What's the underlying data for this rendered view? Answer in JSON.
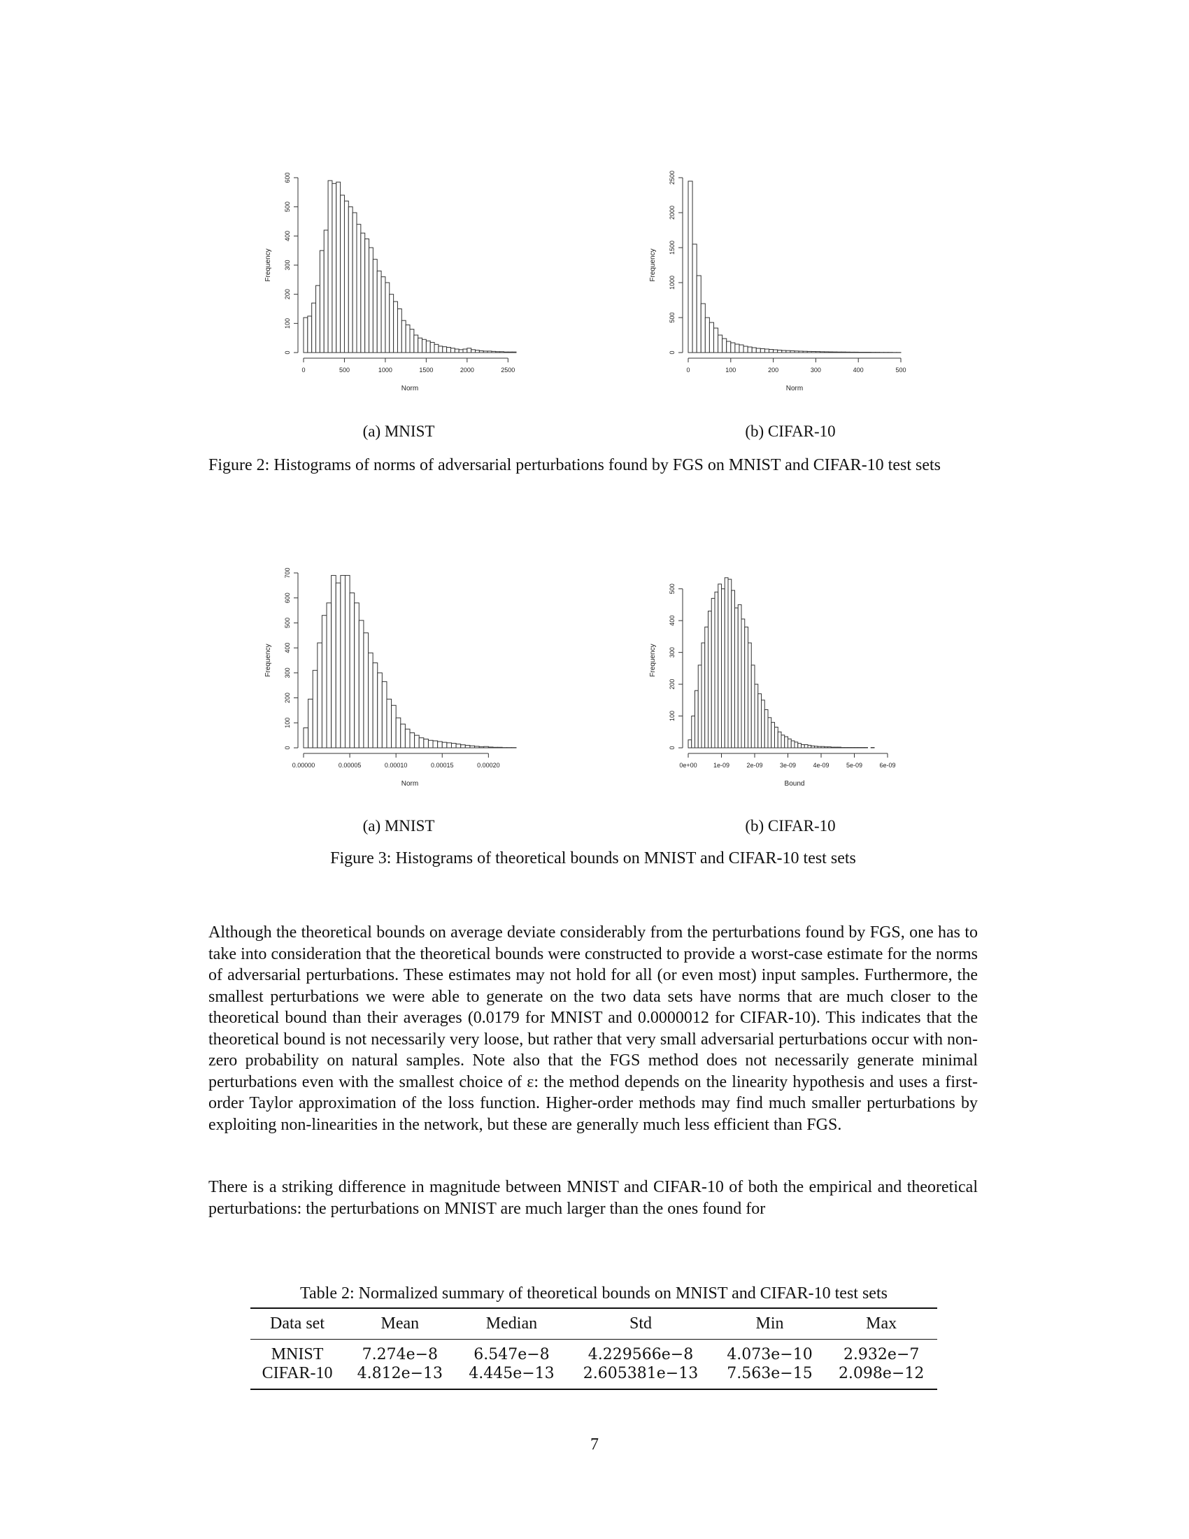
{
  "figure2": {
    "caption": "Figure 2: Histograms of norms of adversarial perturbations found by FGS on MNIST and CIFAR-10 test sets",
    "subcaptions": [
      "(a) MNIST",
      "(b) CIFAR-10"
    ]
  },
  "figure3": {
    "caption": "Figure 3: Histograms of theoretical bounds on MNIST and CIFAR-10 test sets",
    "subcaptions": [
      "(a) MNIST",
      "(b) CIFAR-10"
    ]
  },
  "chart_data": [
    {
      "id": "fig2a",
      "type": "bar",
      "title": "",
      "xlabel": "Norm",
      "ylabel": "Frequency",
      "xlim": [
        0,
        2600
      ],
      "ylim": [
        0,
        600
      ],
      "bin_width": 50,
      "x_start": 0,
      "xticks": [
        0,
        500,
        1000,
        1500,
        2000,
        2500
      ],
      "xtick_labels": [
        "0",
        "500",
        "1000",
        "1500",
        "2000",
        "2500"
      ],
      "yticks": [
        0,
        100,
        200,
        300,
        400,
        500,
        600
      ],
      "ytick_labels": [
        "0",
        "100",
        "200",
        "300",
        "400",
        "500",
        "600"
      ],
      "values": [
        120,
        125,
        170,
        230,
        350,
        420,
        590,
        580,
        585,
        540,
        520,
        500,
        480,
        440,
        410,
        390,
        360,
        320,
        280,
        260,
        240,
        200,
        175,
        150,
        110,
        95,
        80,
        60,
        50,
        45,
        40,
        35,
        28,
        22,
        20,
        18,
        15,
        12,
        10,
        12,
        15,
        10,
        8,
        6,
        5,
        5,
        4,
        3,
        3,
        2,
        2,
        2
      ]
    },
    {
      "id": "fig2b",
      "type": "bar",
      "title": "",
      "xlabel": "Norm",
      "ylabel": "Frequency",
      "xlim": [
        0,
        500
      ],
      "ylim": [
        0,
        2500
      ],
      "bin_width": 10,
      "x_start": 0,
      "xticks": [
        0,
        100,
        200,
        300,
        400,
        500
      ],
      "xtick_labels": [
        "0",
        "100",
        "200",
        "300",
        "400",
        "500"
      ],
      "yticks": [
        0,
        500,
        1000,
        1500,
        2000,
        2500
      ],
      "ytick_labels": [
        "0",
        "500",
        "1000",
        "1500",
        "2000",
        "2500"
      ],
      "values": [
        2450,
        1550,
        1100,
        700,
        500,
        430,
        350,
        250,
        200,
        160,
        140,
        120,
        110,
        90,
        80,
        70,
        60,
        55,
        50,
        45,
        40,
        35,
        30,
        28,
        25,
        22,
        20,
        18,
        16,
        15,
        14,
        12,
        11,
        10,
        9,
        8,
        8,
        7,
        6,
        6,
        5,
        5,
        5,
        4,
        4,
        3,
        3,
        3,
        2,
        2
      ]
    },
    {
      "id": "fig3a",
      "type": "bar",
      "title": "",
      "xlabel": "Norm",
      "ylabel": "Frequency",
      "xlim": [
        0,
        0.00023
      ],
      "ylim": [
        0,
        700
      ],
      "bin_width": 5e-06,
      "x_start": 0,
      "xticks": [
        0,
        5e-05,
        0.0001,
        0.00015,
        0.0002
      ],
      "xtick_labels": [
        "0.00000",
        "0.00005",
        "0.00010",
        "0.00015",
        "0.00020"
      ],
      "yticks": [
        0,
        100,
        200,
        300,
        400,
        500,
        600,
        700
      ],
      "ytick_labels": [
        "0",
        "100",
        "200",
        "300",
        "400",
        "500",
        "600",
        "700"
      ],
      "values": [
        80,
        195,
        310,
        420,
        530,
        580,
        690,
        660,
        690,
        690,
        620,
        580,
        510,
        460,
        380,
        340,
        300,
        265,
        195,
        170,
        120,
        95,
        75,
        60,
        50,
        40,
        35,
        30,
        28,
        25,
        22,
        20,
        18,
        15,
        12,
        10,
        8,
        6,
        4,
        5,
        3,
        2,
        2,
        1,
        1,
        1
      ]
    },
    {
      "id": "fig3b",
      "type": "bar",
      "title": "",
      "xlabel": "Bound",
      "ylabel": "Frequency",
      "xlim": [
        0,
        6.4e-09
      ],
      "ylim": [
        0,
        550
      ],
      "bin_width": 1e-10,
      "x_start": 0,
      "xticks": [
        0,
        1e-09,
        2e-09,
        3e-09,
        4e-09,
        5e-09,
        6e-09
      ],
      "xtick_labels": [
        "0e+00",
        "1e-09",
        "2e-09",
        "3e-09",
        "4e-09",
        "5e-09",
        "6e-09"
      ],
      "yticks": [
        0,
        100,
        200,
        300,
        400,
        500
      ],
      "ytick_labels": [
        "0",
        "100",
        "200",
        "300",
        "400",
        "500"
      ],
      "values": [
        25,
        100,
        180,
        260,
        330,
        380,
        430,
        470,
        490,
        515,
        500,
        535,
        530,
        495,
        440,
        450,
        405,
        380,
        330,
        260,
        200,
        170,
        150,
        120,
        95,
        80,
        65,
        50,
        40,
        35,
        28,
        22,
        18,
        14,
        10,
        10,
        8,
        6,
        5,
        4,
        4,
        3,
        3,
        2,
        2,
        2,
        1,
        1,
        1,
        1,
        1,
        1,
        1,
        1,
        0,
        1,
        0,
        0,
        0,
        0,
        0,
        0,
        0
      ]
    }
  ],
  "paragraphs": [
    "Although the theoretical bounds on average deviate considerably from the perturbations found by FGS, one has to take into consideration that the theoretical bounds were constructed to provide a worst-case estimate for the norms of adversarial perturbations. These estimates may not hold for all (or even most) input samples. Furthermore, the smallest perturbations we were able to generate on the two data sets have norms that are much closer to the theoretical bound than their averages (0.0179 for MNIST and 0.0000012 for CIFAR-10). This indicates that the theoretical bound is not necessarily very loose, but rather that very small adversarial perturbations occur with non-zero probability on natural samples. Note also that the FGS method does not necessarily generate minimal perturbations even with the smallest choice of ε: the method depends on the linearity hypothesis and uses a first-order Taylor approximation of the loss function. Higher-order methods may find much smaller perturbations by exploiting non-linearities in the network, but these are generally much less efficient than FGS.",
    "There is a striking difference in magnitude between MNIST and CIFAR-10 of both the empirical and theoretical perturbations: the perturbations on MNIST are much larger than the ones found for"
  ],
  "table": {
    "caption": "Table 2: Normalized summary of theoretical bounds on MNIST and CIFAR-10 test sets",
    "headers": [
      "Data set",
      "Mean",
      "Median",
      "Std",
      "Min",
      "Max"
    ],
    "rows": [
      [
        "MNIST",
        "7.274e−8",
        "6.547e−8",
        "4.229566e−8",
        "4.073e−10",
        "2.932e−7"
      ],
      [
        "CIFAR-10",
        "4.812e−13",
        "4.445e−13",
        "2.605381e−13",
        "7.563e−15",
        "2.098e−12"
      ]
    ]
  },
  "page_number": "7"
}
